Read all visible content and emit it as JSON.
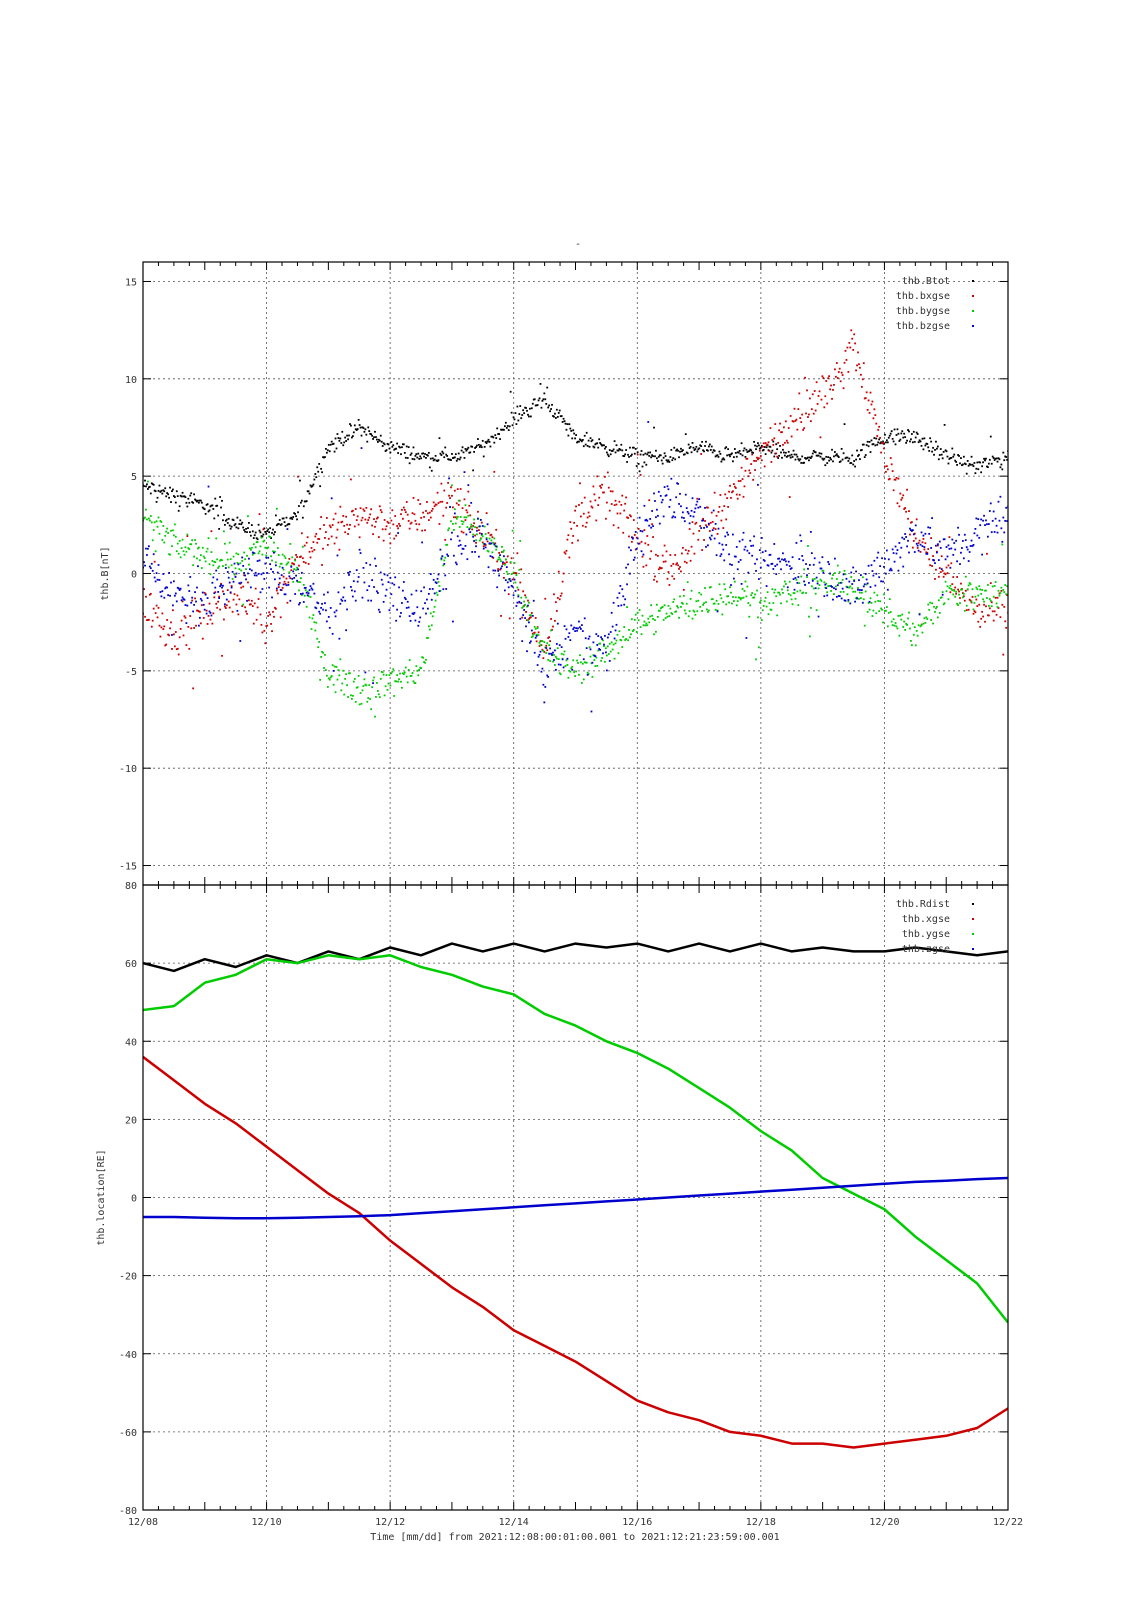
{
  "figure": {
    "title": "-",
    "xlabel": "Time [mm/dd]  from 2021:12:08:00:01:00.001  to  2021:12:21:23:59:00.001",
    "x_ticks": [
      "12/08",
      "12/10",
      "12/12",
      "12/14",
      "12/16",
      "12/18",
      "12/20",
      "12/22"
    ]
  },
  "chart_data": [
    {
      "type": "scatter",
      "title": "-",
      "xlabel": "Time [mm/dd]",
      "ylabel": "thb.B[nT]",
      "xlim": [
        "2021-12-08",
        "2021-12-22"
      ],
      "ylim": [
        -16,
        16
      ],
      "y_ticks": [
        15,
        10,
        5,
        0,
        -5,
        -10,
        -15
      ],
      "x_ticks": [
        "12/08",
        "12/10",
        "12/12",
        "12/14",
        "12/16",
        "12/18",
        "12/20",
        "12/22"
      ],
      "grid": true,
      "legend": "top-right",
      "x_days": [
        0,
        0.5,
        1,
        1.5,
        2,
        2.5,
        3,
        3.5,
        4,
        4.5,
        5,
        5.5,
        6,
        6.5,
        7,
        7.5,
        8,
        8.5,
        9,
        9.5,
        10,
        10.5,
        11,
        11.5,
        12,
        12.5,
        13,
        13.5,
        14
      ],
      "series": [
        {
          "name": "thb.Btot",
          "color": "#000000",
          "spread": 0.6,
          "values": [
            4.5,
            4.0,
            3.5,
            2.5,
            2.0,
            3.0,
            6.5,
            7.5,
            6.5,
            6.0,
            6.0,
            6.5,
            8.0,
            9.0,
            7.0,
            6.5,
            6.0,
            6.0,
            6.5,
            6.0,
            6.5,
            6.0,
            6.0,
            6.0,
            7.0,
            7.0,
            6.0,
            5.5,
            6.0
          ]
        },
        {
          "name": "thb.bxgse",
          "color": "#cc0000",
          "spread": 1.6,
          "values": [
            -1.5,
            -3.0,
            -2.0,
            -1.0,
            -2.5,
            1.0,
            2.0,
            3.0,
            2.5,
            3.0,
            4.0,
            2.0,
            0.0,
            -4.0,
            3.0,
            4.0,
            2.0,
            0.0,
            2.0,
            4.0,
            6.0,
            8.0,
            9.0,
            12.0,
            6.0,
            2.0,
            0.0,
            -2.0,
            -2.0
          ]
        },
        {
          "name": "thb.bygse",
          "color": "#00cc00",
          "spread": 1.2,
          "values": [
            3.0,
            1.5,
            1.0,
            0.5,
            1.5,
            0.0,
            -5.0,
            -6.0,
            -5.5,
            -5.0,
            3.0,
            2.0,
            0.0,
            -4.0,
            -5.0,
            -4.0,
            -2.5,
            -2.0,
            -1.5,
            -1.0,
            -1.5,
            -1.0,
            -0.5,
            -0.5,
            -2.0,
            -3.0,
            -1.0,
            -1.0,
            -1.0
          ]
        },
        {
          "name": "thb.bzgse",
          "color": "#0000cc",
          "spread": 1.8,
          "values": [
            1.0,
            -1.0,
            -1.5,
            0.0,
            0.0,
            -0.5,
            -2.0,
            0.0,
            -1.0,
            -2.0,
            1.0,
            2.0,
            -1.0,
            -5.0,
            -3.0,
            -4.0,
            2.0,
            4.0,
            3.0,
            1.0,
            0.5,
            0.5,
            0.0,
            -1.0,
            0.5,
            2.0,
            1.0,
            2.0,
            3.0
          ]
        }
      ]
    },
    {
      "type": "line",
      "xlabel": "Time [mm/dd]",
      "ylabel": "thb.location[RE]",
      "xlim": [
        "2021-12-08",
        "2021-12-22"
      ],
      "ylim": [
        -80,
        80
      ],
      "y_ticks": [
        80,
        60,
        40,
        20,
        0,
        -20,
        -40,
        -60,
        -80
      ],
      "x_ticks": [
        "12/08",
        "12/10",
        "12/12",
        "12/14",
        "12/16",
        "12/18",
        "12/20",
        "12/22"
      ],
      "grid": true,
      "legend": "top-right",
      "x_days": [
        0,
        0.5,
        1,
        1.5,
        2,
        2.5,
        3,
        3.5,
        4,
        4.5,
        5,
        5.5,
        6,
        6.5,
        7,
        7.5,
        8,
        8.5,
        9,
        9.5,
        10,
        10.5,
        11,
        11.5,
        12,
        12.5,
        13,
        13.5,
        14
      ],
      "series": [
        {
          "name": "thb.Rdist",
          "color": "#000000",
          "values": [
            60,
            58,
            61,
            59,
            62,
            60,
            63,
            61,
            64,
            62,
            65,
            63,
            65,
            63,
            65,
            64,
            65,
            63,
            65,
            63,
            65,
            63,
            64,
            63,
            63,
            64,
            63,
            62,
            63
          ]
        },
        {
          "name": "thb.xgse",
          "color": "#cc0000",
          "values": [
            36,
            30,
            24,
            19,
            13,
            7,
            1,
            -4,
            -11,
            -17,
            -23,
            -28,
            -34,
            -38,
            -42,
            -47,
            -52,
            -55,
            -57,
            -60,
            -61,
            -63,
            -63,
            -64,
            -63,
            -62,
            -61,
            -59,
            -54
          ]
        },
        {
          "name": "thb.ygse",
          "color": "#00cc00",
          "values": [
            48,
            49,
            55,
            57,
            61,
            60,
            62,
            61,
            62,
            59,
            57,
            54,
            52,
            47,
            44,
            40,
            37,
            33,
            28,
            23,
            17,
            12,
            5,
            1,
            -3,
            -10,
            -16,
            -22,
            -32
          ]
        },
        {
          "name": "thb.zgse",
          "color": "#0000cc",
          "values": [
            -5,
            -5,
            -5.2,
            -5.3,
            -5.3,
            -5.2,
            -5.0,
            -4.8,
            -4.5,
            -4.0,
            -3.5,
            -3.0,
            -2.5,
            -2.0,
            -1.5,
            -1.0,
            -0.5,
            0.0,
            0.5,
            1.0,
            1.5,
            2.0,
            2.5,
            3.0,
            3.5,
            4.0,
            4.3,
            4.7,
            5.0
          ]
        }
      ]
    }
  ]
}
